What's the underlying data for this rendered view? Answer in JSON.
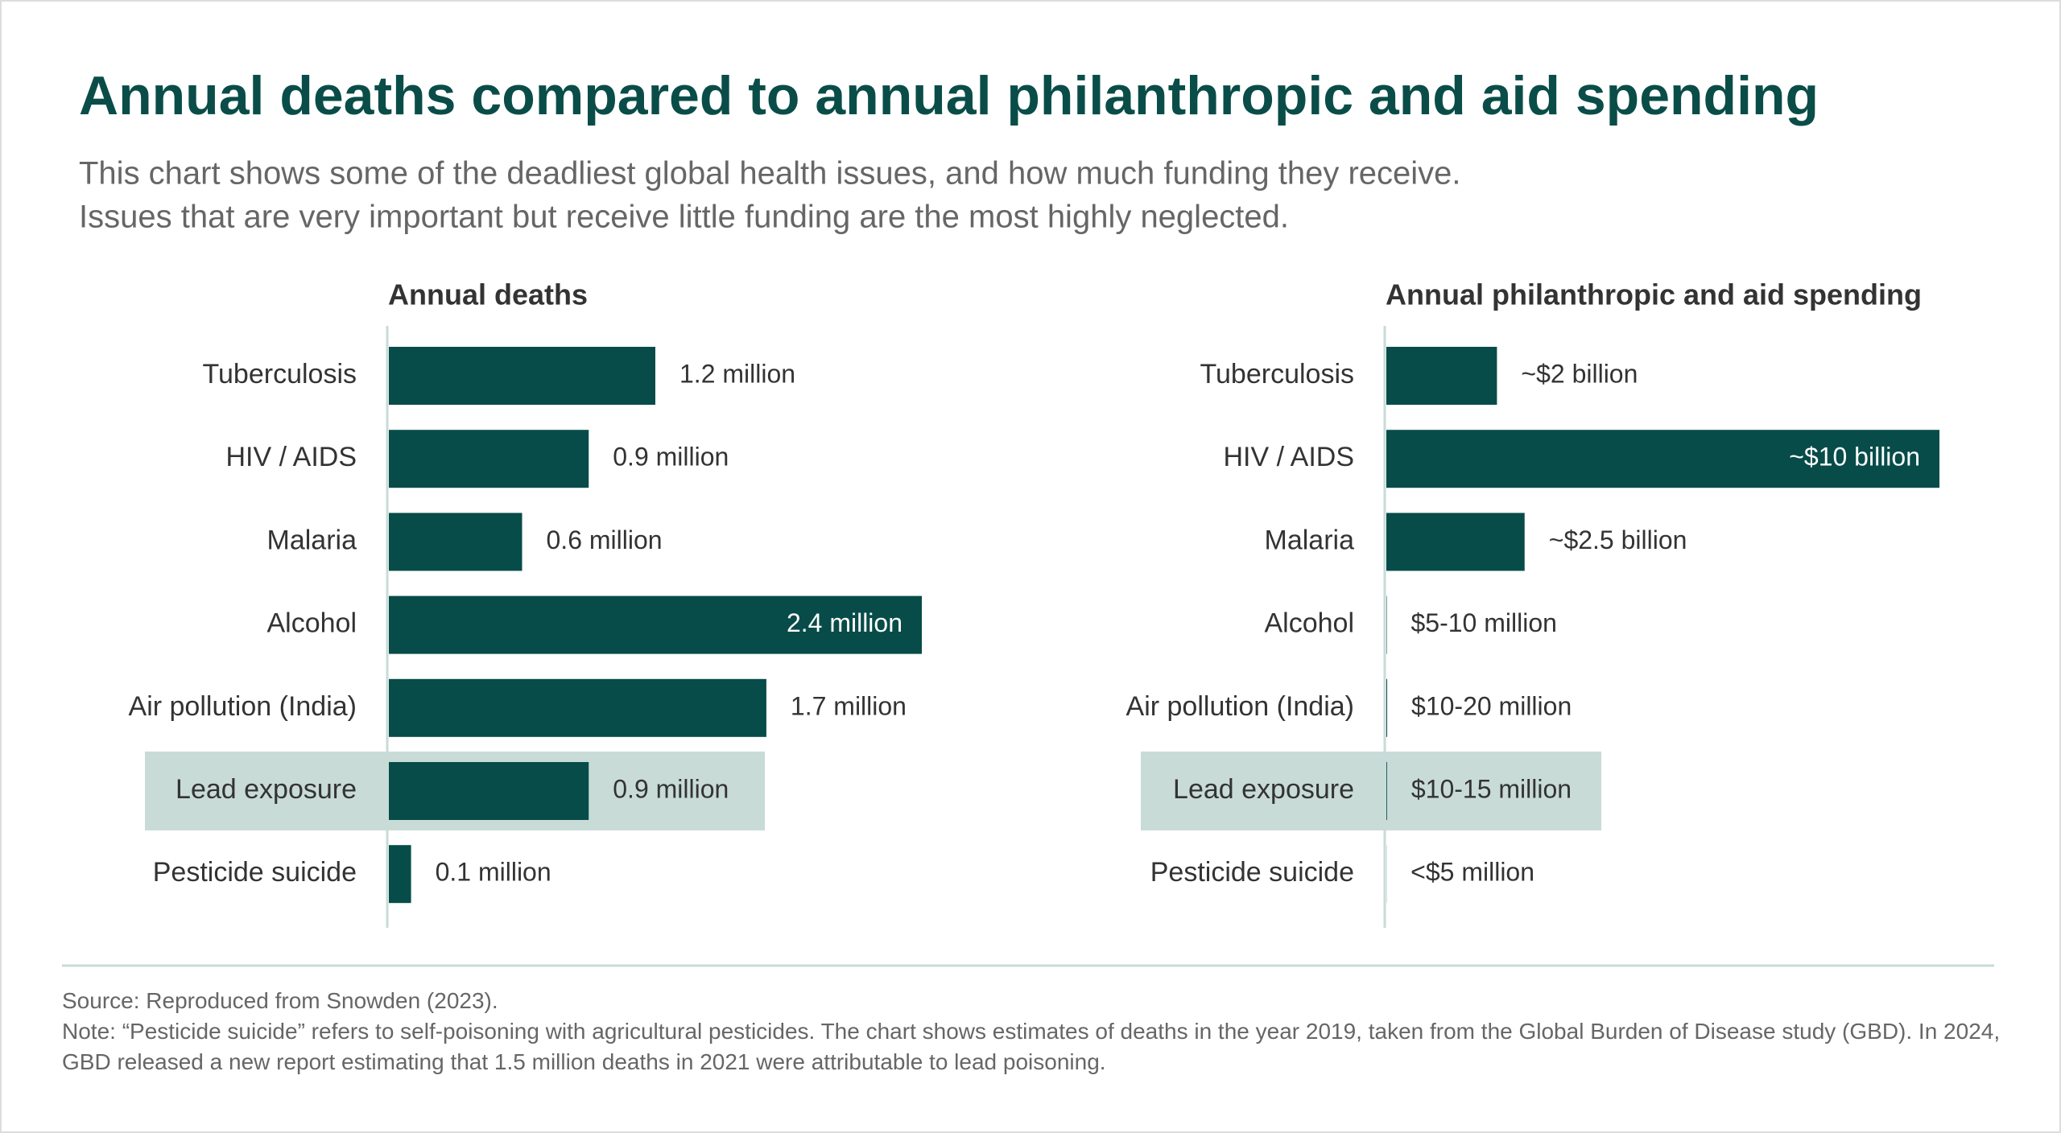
{
  "title": "Annual deaths compared to annual philanthropic and aid spending",
  "subtitle": [
    "This chart shows some of the deadliest global health issues, and how much funding they receive.",
    "Issues that are very important but receive little funding are the most highly neglected."
  ],
  "chart_data": [
    {
      "type": "bar",
      "title": "Annual deaths",
      "categories": [
        "Tuberculosis",
        "HIV / AIDS",
        "Malaria",
        "Alcohol",
        "Air pollution (India)",
        "Lead exposure",
        "Pesticide suicide"
      ],
      "values": [
        1.2,
        0.9,
        0.6,
        2.4,
        1.7,
        0.9,
        0.1
      ],
      "value_labels": [
        "1.2 million",
        "0.9 million",
        "0.6 million",
        "2.4 million",
        "1.7 million",
        "0.9 million",
        "0.1 million"
      ],
      "color": "#074c48",
      "highlighted": [
        false,
        false,
        false,
        false,
        false,
        true,
        false
      ],
      "highlight_color": "#c8dbd7"
    },
    {
      "type": "bar",
      "title": "Annual philanthropic and aid spending",
      "categories": [
        "Tuberculosis",
        "HIV / AIDS",
        "Malaria",
        "Alcohol",
        "Air pollution (India)",
        "Lead exposure",
        "Pesticide suicide"
      ],
      "values": [
        2000,
        10000,
        2500,
        7.5,
        15,
        12.5,
        2.5
      ],
      "value_labels": [
        "~$2 billion",
        "~$10 billion",
        "~$2.5 billion",
        "$5-10 million",
        "$10-20 million",
        "$10-15 million",
        "<$5 million"
      ],
      "color": "#074c48",
      "highlighted": [
        false,
        false,
        false,
        false,
        false,
        true,
        false
      ],
      "highlight_color": "#c8dbd7"
    }
  ],
  "footer": {
    "source": "Source: Reproduced from Snowden (2023).",
    "note": "Note: “Pesticide suicide” refers to self-poisoning with agricultural pesticides. The chart shows estimates of deaths in the year 2019, taken from the Global Burden of Disease study (GBD). In 2024, GBD released a new report estimating that 1.5 million deaths in 2021 were attributable to lead poisoning."
  }
}
